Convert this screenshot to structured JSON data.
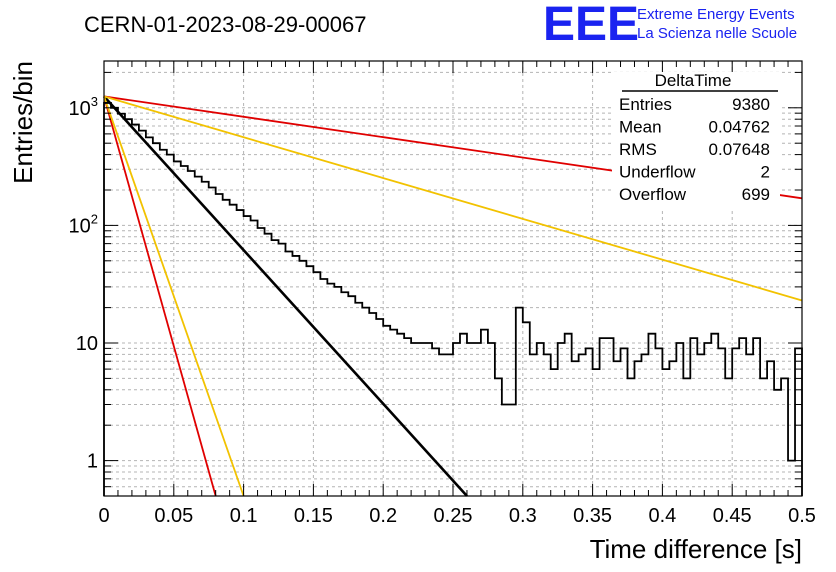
{
  "header": {
    "run_title": "CERN-01-2023-08-29-00067",
    "logo_letters": "EEE",
    "logo_line1": "Extreme Energy Events",
    "logo_line2": "La Scienza nelle Scuole"
  },
  "stats_box": {
    "name": "DeltaTime",
    "rows": [
      {
        "label": "Entries",
        "value": "9380"
      },
      {
        "label": "Mean",
        "value": "0.04762"
      },
      {
        "label": "RMS",
        "value": "0.07648"
      },
      {
        "label": "Underflow",
        "value": "2"
      },
      {
        "label": "Overflow",
        "value": "699"
      }
    ]
  },
  "colors": {
    "histogram": "#000000",
    "fit_line": "#000000",
    "red_curve": "#e00000",
    "yellow_curve": "#f2c200",
    "grid": "#b4b4b4"
  },
  "chart_data": {
    "type": "line",
    "xlabel": "Time difference [s]",
    "ylabel": "Entries/bin",
    "xlim": [
      0,
      0.5
    ],
    "ylim": [
      0.5,
      2500
    ],
    "y_scale": "log",
    "grid": true,
    "x_ticks": [
      "0",
      "0.05",
      "0.1",
      "0.15",
      "0.2",
      "0.25",
      "0.3",
      "0.35",
      "0.4",
      "0.45",
      "0.5"
    ],
    "y_ticks": [
      {
        "value": 1,
        "label": "1"
      },
      {
        "value": 10,
        "label": "10"
      },
      {
        "value": 100,
        "label": "10",
        "exp": "2"
      },
      {
        "value": 1000,
        "label": "10",
        "exp": "3"
      }
    ],
    "bin_width": 0.005,
    "histogram": [
      1100,
      1000,
      890,
      800,
      720,
      640,
      560,
      500,
      440,
      400,
      350,
      320,
      290,
      260,
      235,
      210,
      185,
      165,
      150,
      135,
      120,
      110,
      95,
      85,
      75,
      70,
      60,
      55,
      50,
      45,
      40,
      35,
      32,
      30,
      27,
      25,
      22,
      20,
      18,
      16,
      14,
      13,
      12,
      11,
      10,
      10,
      10,
      9,
      8,
      8,
      10,
      12,
      10,
      10,
      13,
      10,
      5,
      3,
      3,
      20,
      15,
      8,
      10,
      8,
      6,
      10,
      12,
      7,
      8,
      9,
      6,
      11,
      11,
      7,
      9,
      5,
      7,
      8,
      12,
      9,
      6,
      7,
      10,
      5,
      11,
      8,
      10,
      12,
      9,
      5,
      9,
      11,
      8,
      11,
      5,
      7,
      4,
      5,
      1,
      9
    ],
    "series": [
      {
        "type": "exponential",
        "x": [
          0,
          0.26
        ],
        "y": [
          1250,
          0.5
        ]
      },
      {
        "type": "exponential",
        "x": [
          0,
          0.5
        ],
        "y": [
          1250,
          170
        ]
      },
      {
        "type": "exponential",
        "x": [
          0,
          0.5
        ],
        "y": [
          1250,
          23
        ]
      },
      {
        "type": "exponential",
        "x": [
          0,
          0.08
        ],
        "y": [
          1250,
          0.5
        ]
      },
      {
        "type": "exponential",
        "x": [
          0,
          0.1
        ],
        "y": [
          1250,
          0.5
        ]
      }
    ]
  }
}
